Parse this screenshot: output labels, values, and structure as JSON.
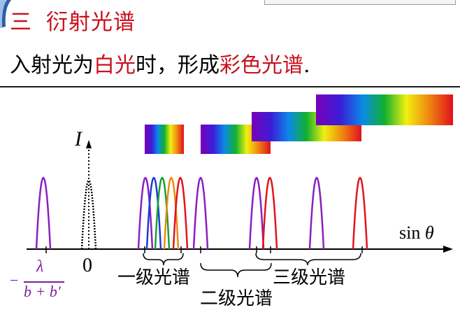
{
  "slide": {
    "title_number": "三",
    "title_text": "衍射光谱",
    "subtitle_pre": "入射光为",
    "subtitle_white_light": "白光",
    "subtitle_mid": "时，形成",
    "subtitle_color_spectrum": "彩色光谱",
    "subtitle_end": "."
  },
  "figure": {
    "axis_label_I": "I",
    "axis_label_sin": "sin",
    "axis_label_theta": "θ",
    "origin_label": "0",
    "fraction_minus": "−",
    "fraction_numerator": "λ",
    "fraction_denominator": "b + b'",
    "label_first_order": "一级光谱",
    "label_second_order": "二级光谱",
    "label_third_order": "三级光谱"
  },
  "colors": {
    "title_red": "#c8101e",
    "violet": "#8a1fc2",
    "red": "#e0141e",
    "blue": "#1a3cd8",
    "green": "#1aa038",
    "orange": "#f08a10"
  }
}
